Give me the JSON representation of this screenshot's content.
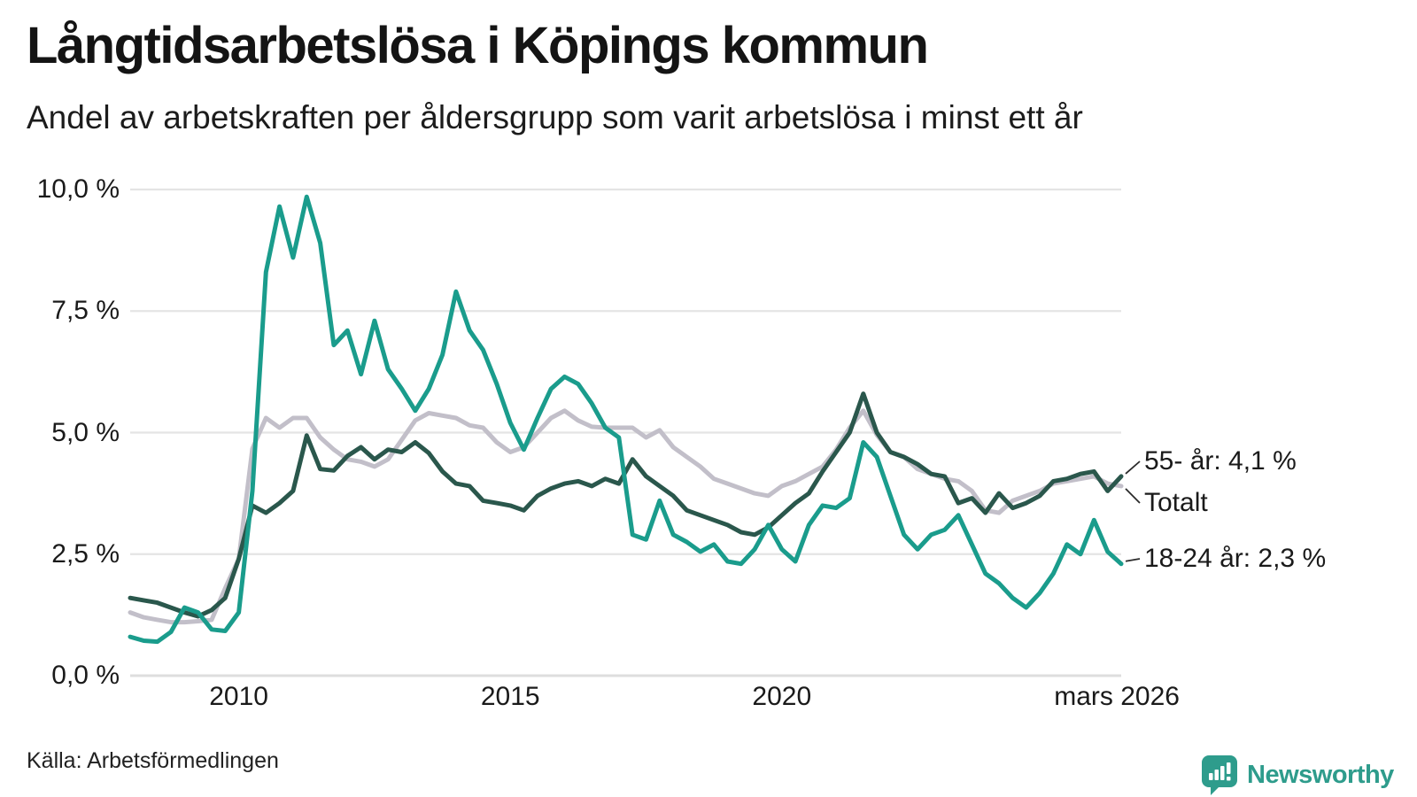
{
  "header": {
    "title": "Långtidsarbetslösa i Köpings kommun",
    "subtitle": "Andel av arbetskraften per åldersgrupp som varit arbetslösa i minst ett år"
  },
  "source": {
    "label": "Källa: Arbetsförmedlingen"
  },
  "branding": {
    "name": "Newsworthy",
    "icon": "bar-chart-speech-bubble-icon",
    "color": "#2e9c8c"
  },
  "annotations": {
    "older": "55- år: 4,1 %",
    "total": "Totalt",
    "youth": "18-24 år: 2,3 %"
  },
  "colors": {
    "youth": "#1a9c8c",
    "total": "#c2bfc9",
    "older": "#2a574c",
    "grid": "#e4e4e4",
    "zero_line": "#dedede",
    "connector": "#2b2b2b"
  },
  "chart_data": {
    "type": "line",
    "title": "Långtidsarbetslösa i Köpings kommun",
    "subtitle": "Andel av arbetskraften per åldersgrupp som varit arbetslösa i minst ett år",
    "x_unit": "year_decimal",
    "ylim": [
      0,
      10
    ],
    "grid": "horizontal",
    "legend_position": "right-end-labels",
    "x_ticks": [
      {
        "value": 2010,
        "label": "2010"
      },
      {
        "value": 2015,
        "label": "2015"
      },
      {
        "value": 2020,
        "label": "2020"
      },
      {
        "value": 2026.17,
        "label": "mars 2026"
      }
    ],
    "y_ticks": [
      {
        "value": 10,
        "label": "10,0 %"
      },
      {
        "value": 7.5,
        "label": "7,5 %"
      },
      {
        "value": 5,
        "label": "5,0 %"
      },
      {
        "value": 2.5,
        "label": "2,5 %"
      },
      {
        "value": 0,
        "label": "0,0 %"
      }
    ],
    "x": [
      2008,
      2008.25,
      2008.5,
      2008.75,
      2009,
      2009.25,
      2009.5,
      2009.75,
      2010,
      2010.25,
      2010.5,
      2010.75,
      2011,
      2011.25,
      2011.5,
      2011.75,
      2012,
      2012.25,
      2012.5,
      2012.75,
      2013,
      2013.25,
      2013.5,
      2013.75,
      2014,
      2014.25,
      2014.5,
      2014.75,
      2015,
      2015.25,
      2015.5,
      2015.75,
      2016,
      2016.25,
      2016.5,
      2016.75,
      2017,
      2017.25,
      2017.5,
      2017.75,
      2018,
      2018.25,
      2018.5,
      2018.75,
      2019,
      2019.25,
      2019.5,
      2019.75,
      2020,
      2020.25,
      2020.5,
      2020.75,
      2021,
      2021.25,
      2021.5,
      2021.75,
      2022,
      2022.25,
      2022.5,
      2022.75,
      2023,
      2023.25,
      2023.5,
      2023.75,
      2024,
      2024.25,
      2024.5,
      2024.75,
      2025,
      2025.25,
      2025.5,
      2025.75,
      2026,
      2026.25
    ],
    "series": [
      {
        "key": "total",
        "name": "Totalt",
        "end_value_label": "Totalt",
        "values": [
          1.3,
          1.2,
          1.15,
          1.1,
          1.1,
          1.12,
          1.15,
          1.8,
          2.4,
          4.67,
          5.3,
          5.1,
          5.3,
          5.3,
          4.9,
          4.65,
          4.45,
          4.4,
          4.3,
          4.45,
          4.85,
          5.25,
          5.4,
          5.35,
          5.3,
          5.15,
          5.1,
          4.8,
          4.6,
          4.7,
          5.0,
          5.3,
          5.45,
          5.25,
          5.12,
          5.1,
          5.1,
          5.1,
          4.9,
          5.05,
          4.7,
          4.5,
          4.3,
          4.05,
          3.95,
          3.85,
          3.75,
          3.7,
          3.9,
          4.0,
          4.15,
          4.3,
          4.65,
          5.1,
          5.45,
          4.95,
          4.6,
          4.5,
          4.25,
          4.15,
          4.05,
          4.0,
          3.8,
          3.4,
          3.35,
          3.6,
          3.7,
          3.8,
          3.95,
          4.0,
          4.05,
          4.1,
          3.95,
          3.9
        ]
      },
      {
        "key": "older",
        "name": "55- år",
        "end_value_label": "55- år: 4,1 %",
        "values": [
          1.6,
          1.55,
          1.5,
          1.4,
          1.3,
          1.22,
          1.35,
          1.6,
          2.4,
          3.5,
          3.35,
          3.55,
          3.8,
          4.94,
          4.25,
          4.22,
          4.52,
          4.7,
          4.45,
          4.65,
          4.6,
          4.8,
          4.58,
          4.2,
          3.95,
          3.9,
          3.6,
          3.55,
          3.5,
          3.4,
          3.7,
          3.85,
          3.95,
          4.0,
          3.9,
          4.05,
          3.95,
          4.45,
          4.1,
          3.9,
          3.7,
          3.4,
          3.3,
          3.2,
          3.1,
          2.95,
          2.9,
          3.05,
          3.3,
          3.55,
          3.75,
          4.2,
          4.6,
          5.0,
          5.8,
          5.0,
          4.6,
          4.5,
          4.35,
          4.15,
          4.1,
          3.55,
          3.65,
          3.35,
          3.75,
          3.45,
          3.55,
          3.7,
          4.0,
          4.05,
          4.15,
          4.2,
          3.8,
          4.1
        ]
      },
      {
        "key": "youth",
        "name": "18-24 år",
        "end_value_label": "18-24 år: 2,3 %",
        "values": [
          0.8,
          0.72,
          0.7,
          0.9,
          1.4,
          1.3,
          0.95,
          0.92,
          1.3,
          3.8,
          8.3,
          9.65,
          8.6,
          9.85,
          8.9,
          6.8,
          7.1,
          6.2,
          7.3,
          6.3,
          5.9,
          5.45,
          5.9,
          6.6,
          7.9,
          7.1,
          6.7,
          6.0,
          5.2,
          4.65,
          5.3,
          5.9,
          6.15,
          6.0,
          5.6,
          5.1,
          4.9,
          2.9,
          2.8,
          3.6,
          2.9,
          2.75,
          2.55,
          2.7,
          2.35,
          2.3,
          2.6,
          3.1,
          2.6,
          2.35,
          3.1,
          3.5,
          3.45,
          3.65,
          4.8,
          4.5,
          3.7,
          2.9,
          2.6,
          2.9,
          3.0,
          3.3,
          2.7,
          2.1,
          1.9,
          1.6,
          1.4,
          1.7,
          2.1,
          2.7,
          2.5,
          3.2,
          2.55,
          2.3
        ]
      }
    ]
  }
}
